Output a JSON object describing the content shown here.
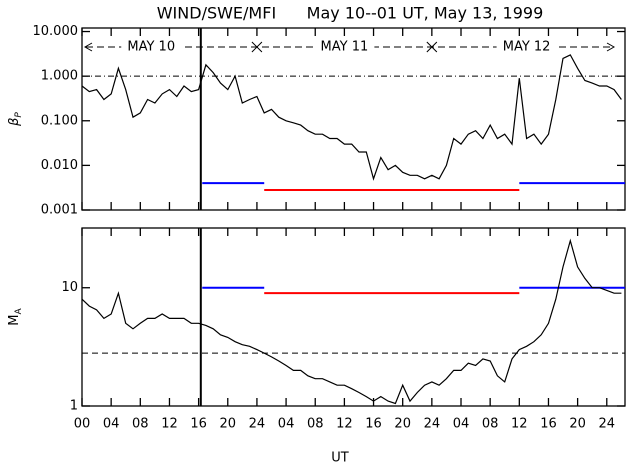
{
  "chart_data": [
    {
      "type": "line",
      "title": "WIND/SWE/MFI      May 10--01 UT, May 13, 1999",
      "y_label": "β",
      "y_label_sub": "P",
      "log_y": true,
      "annotations": [
        "MAY 10",
        "MAY 11",
        "MAY 12"
      ],
      "ylim": [
        0.001,
        12
      ],
      "yticks": [
        {
          "value": 0.001,
          "label": "0.001"
        },
        {
          "value": 0.01,
          "label": "0.010"
        },
        {
          "value": 0.1,
          "label": "0.100"
        },
        {
          "value": 1,
          "label": "1.000"
        },
        {
          "value": 10,
          "label": "10.000"
        }
      ],
      "xlim": [
        0,
        74.5
      ],
      "vline": 16.3,
      "reference_line": 1,
      "segments": [
        {
          "color": "#0000ff",
          "start": 16.5,
          "end": 25,
          "value": 0.004
        },
        {
          "color": "#ff0000",
          "start": 25,
          "end": 60,
          "value": 0.0028
        },
        {
          "color": "#0000ff",
          "start": 60,
          "end": 74.5,
          "value": 0.004
        }
      ],
      "series": [
        {
          "color": "#000000",
          "x": [
            0,
            1,
            2,
            3,
            4,
            5,
            6,
            7,
            8,
            9,
            10,
            11,
            12,
            13,
            14,
            15,
            16,
            17,
            18,
            19,
            20,
            21,
            22,
            23,
            24,
            25,
            26,
            27,
            28,
            29,
            30,
            31,
            32,
            33,
            34,
            35,
            36,
            37,
            38,
            39,
            40,
            41,
            42,
            43,
            44,
            45,
            46,
            47,
            48,
            49,
            50,
            51,
            52,
            53,
            54,
            55,
            56,
            57,
            58,
            59,
            60,
            61,
            62,
            63,
            64,
            65,
            66,
            67,
            68,
            69,
            70,
            71,
            72,
            73,
            74
          ],
          "values": [
            0.6,
            0.45,
            0.5,
            0.3,
            0.4,
            1.5,
            0.5,
            0.12,
            0.15,
            0.3,
            0.25,
            0.4,
            0.5,
            0.35,
            0.6,
            0.45,
            0.5,
            1.8,
            1.2,
            0.7,
            0.5,
            1.0,
            0.25,
            0.3,
            0.35,
            0.15,
            0.18,
            0.12,
            0.1,
            0.09,
            0.08,
            0.06,
            0.05,
            0.05,
            0.04,
            0.04,
            0.03,
            0.03,
            0.02,
            0.02,
            0.005,
            0.015,
            0.008,
            0.01,
            0.007,
            0.006,
            0.006,
            0.005,
            0.006,
            0.005,
            0.01,
            0.04,
            0.03,
            0.05,
            0.06,
            0.04,
            0.08,
            0.04,
            0.05,
            0.03,
            0.9,
            0.04,
            0.05,
            0.03,
            0.05,
            0.3,
            2.5,
            3,
            1.5,
            0.8,
            0.7,
            0.6,
            0.6,
            0.5,
            0.3
          ]
        }
      ]
    },
    {
      "type": "line",
      "x_label": "UT",
      "y_label": "M",
      "y_label_sub": "A",
      "log_y": true,
      "ylim": [
        1,
        32
      ],
      "yticks": [
        1,
        10
      ],
      "xlim": [
        0,
        74.5
      ],
      "xticks": [
        {
          "value": 0,
          "label": "00"
        },
        {
          "value": 4,
          "label": "04"
        },
        {
          "value": 8,
          "label": "08"
        },
        {
          "value": 12,
          "label": "12"
        },
        {
          "value": 16,
          "label": "16"
        },
        {
          "value": 20,
          "label": "20"
        },
        {
          "value": 24,
          "label": "24"
        },
        {
          "value": 28,
          "label": "04"
        },
        {
          "value": 32,
          "label": "08"
        },
        {
          "value": 36,
          "label": "12"
        },
        {
          "value": 40,
          "label": "16"
        },
        {
          "value": 44,
          "label": "20"
        },
        {
          "value": 48,
          "label": "24"
        },
        {
          "value": 52,
          "label": "04"
        },
        {
          "value": 56,
          "label": "08"
        },
        {
          "value": 60,
          "label": "12"
        },
        {
          "value": 64,
          "label": "16"
        },
        {
          "value": 68,
          "label": "20"
        },
        {
          "value": 72,
          "label": "24"
        }
      ],
      "vline": 16.3,
      "reference_line": 2.8,
      "segments": [
        {
          "color": "#0000ff",
          "start": 16.5,
          "end": 25,
          "value": 10
        },
        {
          "color": "#ff0000",
          "start": 25,
          "end": 60,
          "value": 9
        },
        {
          "color": "#0000ff",
          "start": 60,
          "end": 74.5,
          "value": 10
        }
      ],
      "series": [
        {
          "color": "#000000",
          "x": [
            0,
            1,
            2,
            3,
            4,
            5,
            6,
            7,
            8,
            9,
            10,
            11,
            12,
            13,
            14,
            15,
            16,
            17,
            18,
            19,
            20,
            21,
            22,
            23,
            24,
            25,
            26,
            27,
            28,
            29,
            30,
            31,
            32,
            33,
            34,
            35,
            36,
            37,
            38,
            39,
            40,
            41,
            42,
            43,
            44,
            45,
            46,
            47,
            48,
            49,
            50,
            51,
            52,
            53,
            54,
            55,
            56,
            57,
            58,
            59,
            60,
            61,
            62,
            63,
            64,
            65,
            66,
            67,
            68,
            69,
            70,
            71,
            72,
            73,
            74
          ],
          "values": [
            8,
            7,
            6.5,
            5.5,
            6,
            9,
            5,
            4.5,
            5,
            5.5,
            5.5,
            6,
            5.5,
            5.5,
            5.5,
            5,
            5,
            4.8,
            4.5,
            4,
            3.8,
            3.5,
            3.3,
            3.2,
            3,
            2.8,
            2.6,
            2.4,
            2.2,
            2,
            2,
            1.8,
            1.7,
            1.7,
            1.6,
            1.5,
            1.5,
            1.4,
            1.3,
            1.2,
            1.1,
            1.2,
            1.1,
            1.05,
            1.5,
            1.1,
            1.3,
            1.5,
            1.6,
            1.5,
            1.7,
            2,
            2,
            2.3,
            2.2,
            2.5,
            2.4,
            1.8,
            1.6,
            2.5,
            3,
            3.2,
            3.5,
            4,
            5,
            8,
            15,
            25,
            15,
            12,
            10,
            10,
            9.5,
            9,
            9
          ]
        }
      ]
    }
  ]
}
